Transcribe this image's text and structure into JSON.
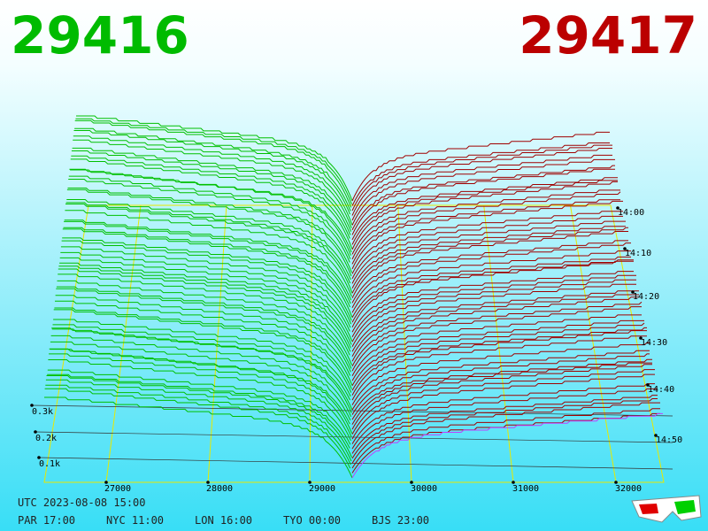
{
  "header": {
    "bid": "29416",
    "ask": "29417"
  },
  "price_axis": {
    "labels": [
      "27000",
      "28000",
      "29000",
      "30000",
      "31000",
      "32000"
    ]
  },
  "time_axis": {
    "labels": [
      "14:00",
      "14:10",
      "14:20",
      "14:30",
      "14:40",
      "14:50"
    ]
  },
  "volume_axis": {
    "labels": [
      "0.3k",
      "0.2k",
      "0.1k"
    ]
  },
  "footer": {
    "utc": "UTC 2023-08-08 15:00",
    "clocks": [
      "PAR 17:00",
      "NYC 11:00",
      "LON 16:00",
      "TYO 00:00",
      "BJS 23:00"
    ]
  }
}
